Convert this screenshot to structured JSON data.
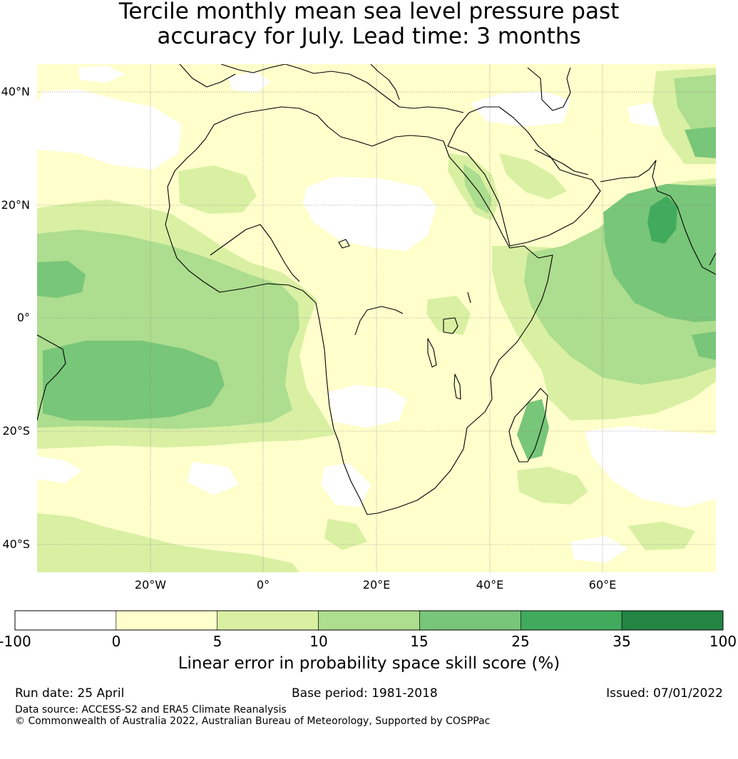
{
  "title": {
    "line1": "Tercile monthly mean sea level pressure past",
    "line2": "accuracy for July. Lead time: 3 months"
  },
  "map": {
    "lat_labels": [
      "40°N",
      "20°N",
      "0°",
      "20°S",
      "40°S"
    ],
    "lon_labels": [
      "20°W",
      "0°",
      "20°E",
      "40°E",
      "60°E"
    ]
  },
  "colorbar": {
    "ticks": [
      "-100",
      "0",
      "5",
      "10",
      "15",
      "25",
      "35",
      "100"
    ],
    "colors": [
      "#ffffff",
      "#ffffcc",
      "#d9f0a3",
      "#addd8e",
      "#78c679",
      "#41ab5d",
      "#238443"
    ],
    "label": "Linear error in probability space skill score (%)"
  },
  "footer": {
    "run_date": "Run date: 25 April",
    "base_period": "Base period: 1981-2018",
    "issued": "Issued: 07/01/2022",
    "data_source": "Data source: ACCESS-S2 and ERA5 Climate Reanalysis",
    "copyright": "© Commonwealth of Australia 2022, Australian Bureau of Meteorology, Supported by COSPPac"
  }
}
